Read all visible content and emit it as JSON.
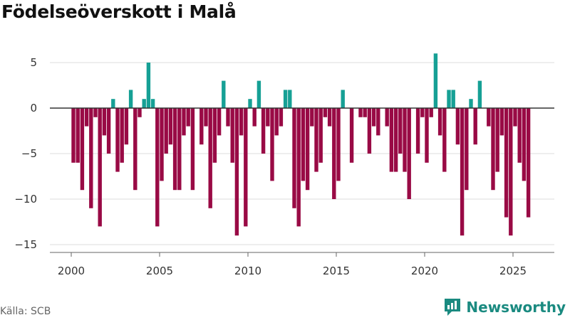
{
  "chart_data": {
    "type": "bar",
    "title": "Födelseöverskott i Malå",
    "source": "Källa: SCB",
    "brand": "Newsworthy",
    "xlabel": "",
    "ylabel": "",
    "ylim": [
      -16,
      7
    ],
    "xlim": [
      1999,
      2027.2
    ],
    "yticks": [
      5,
      0,
      -5,
      -10,
      -15
    ],
    "ytick_labels": [
      "5",
      "0",
      "−10",
      "−15"
    ],
    "ytick_labels_full": [
      "5",
      "0",
      "−5",
      "−10",
      "−15"
    ],
    "xticks": [
      2000,
      2005,
      2010,
      2015,
      2020,
      2025
    ],
    "xtick_labels": [
      "2000",
      "2005",
      "2010",
      "2015",
      "2020",
      "2025"
    ],
    "colors": {
      "positive": "#16a095",
      "negative": "#990a45",
      "grid": "#dddddd",
      "zero": "#333333"
    },
    "period": "quarterly",
    "start_year": 2000,
    "values": [
      -6,
      -6,
      -9,
      -2,
      -11,
      -1,
      -13,
      -3,
      -5,
      1,
      -7,
      -6,
      -4,
      2,
      -9,
      -1,
      1,
      5,
      1,
      -13,
      -8,
      -5,
      -4,
      -9,
      -9,
      -3,
      -2,
      -9,
      0,
      -4,
      -2,
      -11,
      -6,
      -3,
      3,
      -2,
      -6,
      -14,
      -3,
      -13,
      1,
      -2,
      3,
      -5,
      -2,
      -8,
      -3,
      -2,
      2,
      2,
      -11,
      -13,
      -8,
      -9,
      -2,
      -7,
      -6,
      -1,
      -2,
      -10,
      -8,
      2,
      0,
      -6,
      0,
      -1,
      -1,
      -5,
      -2,
      -3,
      0,
      -2,
      -7,
      -7,
      -5,
      -7,
      -10,
      0,
      -5,
      -1,
      -6,
      -1,
      6,
      -3,
      -7,
      2,
      2,
      -4,
      -14,
      -9,
      1,
      -4,
      3,
      0,
      -2,
      -9,
      -7,
      -3,
      -12,
      -14,
      -2,
      -6,
      -8,
      -12
    ]
  }
}
